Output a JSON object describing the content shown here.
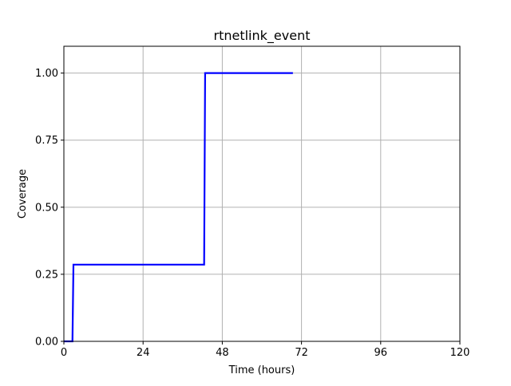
{
  "chart_data": {
    "type": "line",
    "title": "rtnetlink_event",
    "xlabel": "Time (hours)",
    "ylabel": "Coverage",
    "xlim": [
      0,
      120
    ],
    "ylim": [
      0,
      1.1
    ],
    "xticks": [
      0,
      24,
      48,
      72,
      96,
      120
    ],
    "xtick_labels": [
      "0",
      "24",
      "48",
      "72",
      "96",
      "120"
    ],
    "yticks": [
      0,
      0.25,
      0.5,
      0.75,
      1.0
    ],
    "ytick_labels": [
      "0.00",
      "0.25",
      "0.50",
      "0.75",
      "1.00"
    ],
    "grid": true,
    "legend": "none",
    "series": [
      {
        "color": "#0000ff",
        "x": [
          0,
          2.6,
          2.9,
          42.5,
          42.8,
          69.4
        ],
        "y": [
          0,
          0,
          0.286,
          0.286,
          1.0,
          1.0
        ]
      }
    ]
  }
}
